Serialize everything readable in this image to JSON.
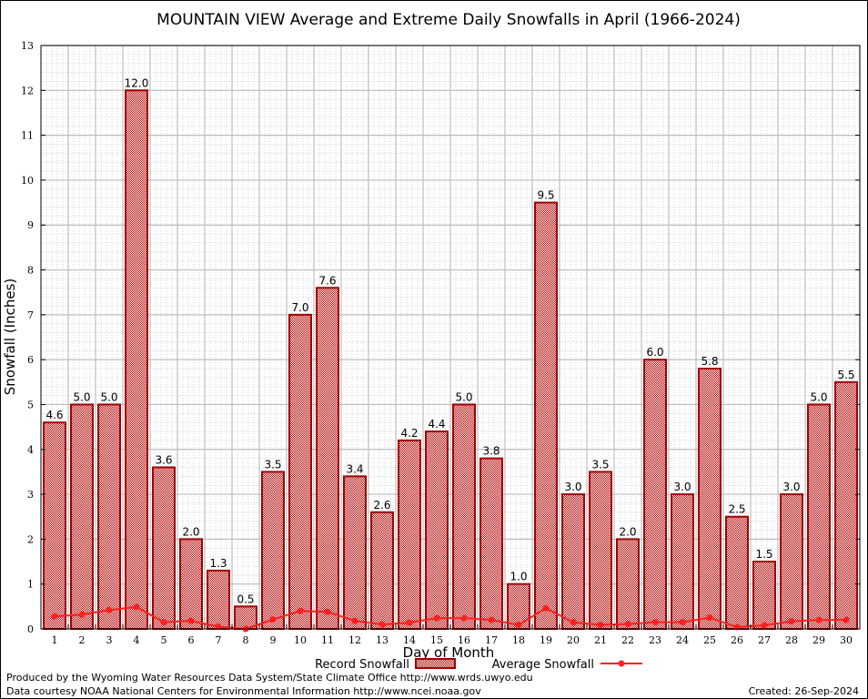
{
  "chart_data": {
    "type": "bar",
    "title": "MOUNTAIN VIEW Average and Extreme Daily Snowfalls in April (1966-2024)",
    "xlabel": "Day of Month",
    "ylabel": "Snowfall (Inches)",
    "ylim": [
      0,
      13
    ],
    "yticks": [
      0,
      1,
      2,
      3,
      4,
      5,
      6,
      7,
      8,
      9,
      10,
      11,
      12,
      13
    ],
    "grid": true,
    "legend_position": "bottom-center",
    "categories": [
      1,
      2,
      3,
      4,
      5,
      6,
      7,
      8,
      9,
      10,
      11,
      12,
      13,
      14,
      15,
      16,
      17,
      18,
      19,
      20,
      21,
      22,
      23,
      24,
      25,
      26,
      27,
      28,
      29,
      30
    ],
    "series": [
      {
        "name": "Record Snowfall",
        "type": "bar",
        "color": "#a00000",
        "values": [
          4.6,
          5.0,
          5.0,
          12.0,
          3.6,
          2.0,
          1.3,
          0.5,
          3.5,
          7.0,
          7.6,
          3.4,
          2.6,
          4.2,
          4.4,
          5.0,
          3.8,
          1.0,
          9.5,
          3.0,
          3.5,
          2.0,
          6.0,
          3.0,
          5.8,
          2.5,
          1.5,
          3.0,
          5.0,
          5.5
        ],
        "labels": [
          "4.6",
          "5.0",
          "5.0",
          "12.0",
          "3.6",
          "2.0",
          "1.3",
          "0.5",
          "3.5",
          "7.0",
          "7.6",
          "3.4",
          "2.6",
          "4.2",
          "4.4",
          "5.0",
          "3.8",
          "1.0",
          "9.5",
          "3.0",
          "3.5",
          "2.0",
          "6.0",
          "3.0",
          "5.8",
          "2.5",
          "1.5",
          "3.0",
          "5.0",
          "5.5"
        ]
      },
      {
        "name": "Average Snowfall",
        "type": "line",
        "color": "#ff2020",
        "values": [
          0.28,
          0.32,
          0.42,
          0.49,
          0.15,
          0.18,
          0.05,
          0.0,
          0.21,
          0.4,
          0.38,
          0.18,
          0.1,
          0.14,
          0.24,
          0.24,
          0.2,
          0.09,
          0.46,
          0.15,
          0.09,
          0.11,
          0.15,
          0.15,
          0.25,
          0.04,
          0.08,
          0.17,
          0.2,
          0.2
        ]
      }
    ]
  },
  "footer": {
    "produced_by": "Produced by the Wyoming Water Resources Data System/State Climate Office http://www.wrds.uwyo.edu",
    "courtesy": "Data courtesy NOAA National Centers for Environmental Information http://www.ncei.noaa.gov",
    "created": "Created: 26-Sep-2024"
  }
}
